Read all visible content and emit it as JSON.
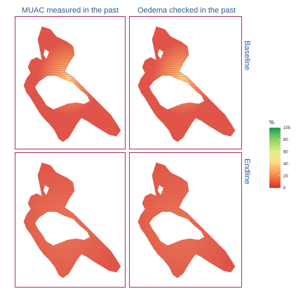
{
  "chart_data": {
    "type": "heatmap",
    "columns": [
      "MUAC measured in the past",
      "Oedema checked in the past"
    ],
    "rows": [
      "Baseline",
      "Endline"
    ],
    "panels": [
      {
        "column": "MUAC measured in the past",
        "row": "Baseline",
        "base_value": 15,
        "hotspot_value": 40
      },
      {
        "column": "Oedema checked in the past",
        "row": "Baseline",
        "base_value": 15,
        "hotspot_value": 40
      },
      {
        "column": "MUAC measured in the past",
        "row": "Endline",
        "base_value": 20,
        "hotspot_value": 25
      },
      {
        "column": "Oedema checked in the past",
        "row": "Endline",
        "base_value": 18,
        "hotspot_value": 22
      }
    ],
    "legend": {
      "title": "%",
      "ticks": [
        0,
        20,
        40,
        60,
        80,
        100
      ],
      "range": [
        0,
        100
      ],
      "position": "right",
      "colors": [
        "#d73027",
        "#f46d43",
        "#fdae61",
        "#fee08b",
        "#d9ef8b",
        "#a6d96a",
        "#66bd63",
        "#1a9850"
      ]
    },
    "strip_color": "#2a5d8f",
    "panel_border_color": "#b03060"
  }
}
